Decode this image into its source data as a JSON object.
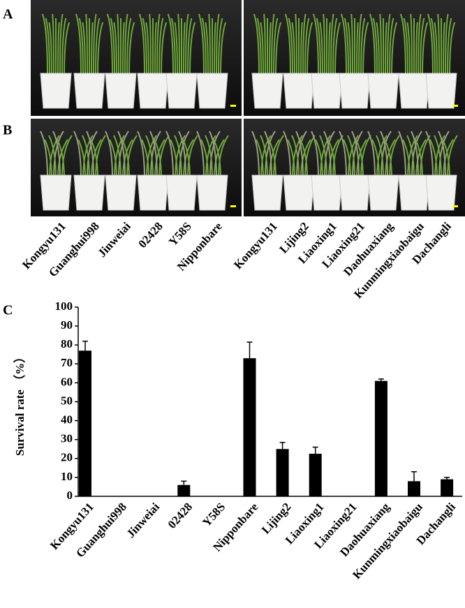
{
  "panel_labels": [
    "A",
    "B",
    "C"
  ],
  "photo_labels": {
    "left": [
      "Kongyu131",
      "Guanghui998",
      "Jinweiai",
      "02428",
      "Y58S",
      "Nipponbare"
    ],
    "right": [
      "Kongyu131",
      "Lijing2",
      "Liaoxing1",
      "Liaoxing21",
      "Daohuaxiang",
      "Kunmingxiaobaigu",
      "Dachangli"
    ]
  },
  "chart_data": {
    "type": "bar",
    "y_label": "Survival rate （%）",
    "categories": [
      "Kongyu131",
      "Guanghui998",
      "Jinweiai",
      "02428",
      "Y58S",
      "Nipponbare",
      "Lijing2",
      "Liaoxing1",
      "Liaoxing21",
      "Daohuaxiang",
      "Kunmingxiaobaigu",
      "Dachangli"
    ],
    "values": [
      77,
      0,
      0,
      6,
      0,
      73,
      25,
      22.5,
      0,
      61,
      8,
      9
    ],
    "errors": [
      5,
      null,
      null,
      2,
      null,
      8.5,
      3.5,
      3.5,
      null,
      1,
      5,
      1
    ],
    "color": "#000000",
    "ylim": [
      0,
      100
    ],
    "yticks": [
      0,
      10,
      20,
      30,
      40,
      50,
      60,
      70,
      80,
      90,
      100
    ],
    "grid": false
  }
}
